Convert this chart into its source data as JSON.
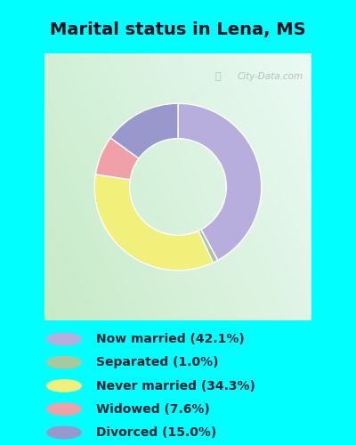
{
  "title": "Marital status in Lena, MS",
  "title_fontsize": 14,
  "categories": [
    "Now married",
    "Separated",
    "Never married",
    "Widowed",
    "Divorced"
  ],
  "values": [
    42.1,
    1.0,
    34.3,
    7.6,
    15.0
  ],
  "colors": [
    "#b8aedd",
    "#a8c8a0",
    "#f0f07a",
    "#f0a0a8",
    "#9898cc"
  ],
  "legend_labels": [
    "Now married (42.1%)",
    "Separated (1.0%)",
    "Never married (34.3%)",
    "Widowed (7.6%)",
    "Divorced (15.0%)"
  ],
  "donut_width": 0.42,
  "legend_bg": "#00FFFF",
  "chart_bg_left": "#c8e8c8",
  "chart_bg_right": "#d8f0e8",
  "watermark": "City-Data.com"
}
